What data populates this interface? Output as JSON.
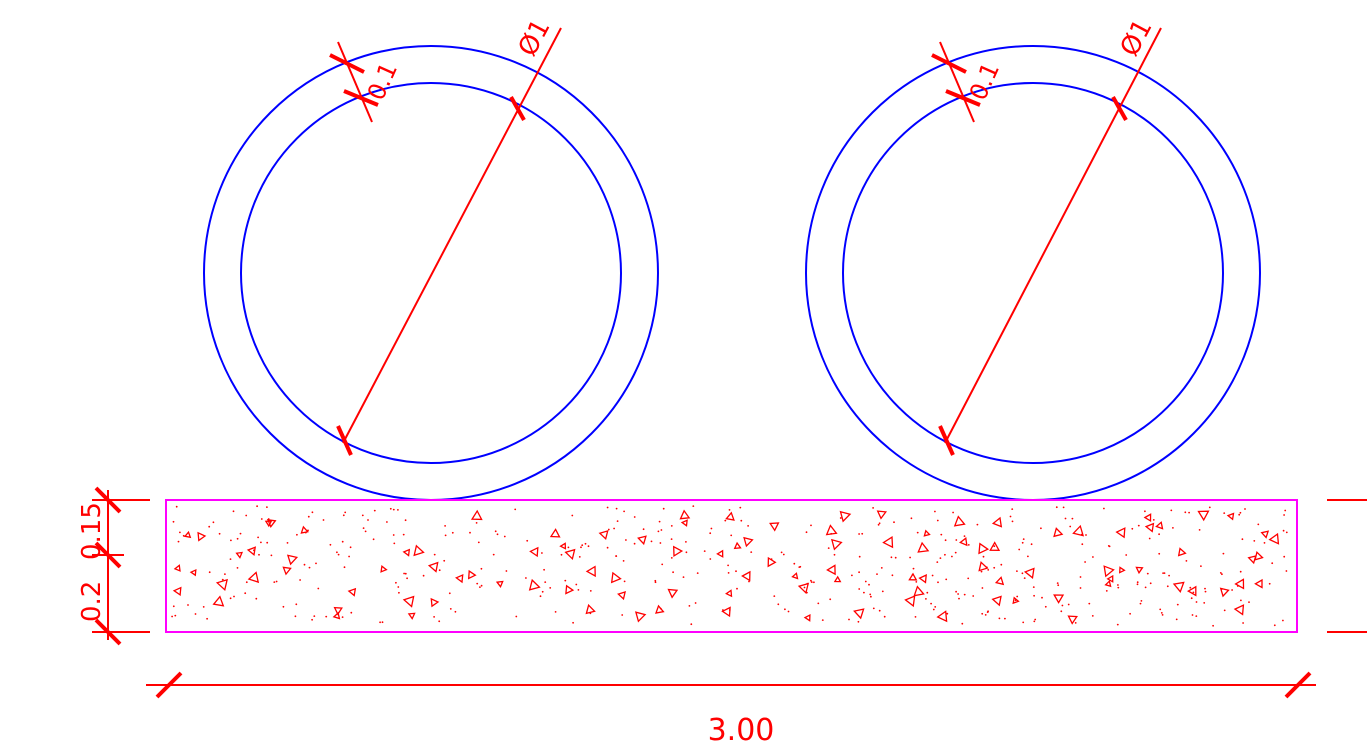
{
  "colors": {
    "pipe": "#0000ff",
    "dimension": "#ff0000",
    "slab": "#ff00ff",
    "background": "#ffffff"
  },
  "pipes": [
    {
      "name": "left-pipe",
      "diameter_label": "Ø1",
      "wall_label": "0.1"
    },
    {
      "name": "right-pipe",
      "diameter_label": "Ø1",
      "wall_label": "0.1"
    }
  ],
  "slab": {
    "hatch": "concrete",
    "length_label": "3.00",
    "thickness_labels": [
      "0.2",
      "0.15"
    ]
  }
}
